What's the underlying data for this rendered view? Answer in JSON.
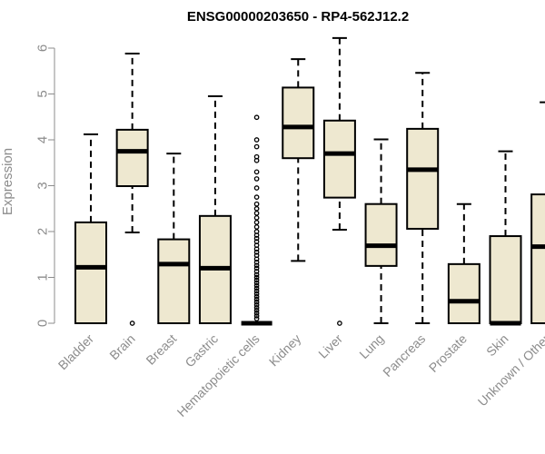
{
  "chart_data": {
    "type": "box",
    "title": "ENSG00000203650 - RP4-562J12.2",
    "xlabel": "",
    "ylabel": "Expression",
    "ylim": [
      0,
      6.2
    ],
    "yticks": [
      0,
      1,
      2,
      3,
      4,
      5,
      6
    ],
    "ytick_labels": [
      "0",
      "1",
      "2",
      "3",
      "4",
      "5",
      "6"
    ],
    "box_color": "#EEE8D0",
    "categories": [
      "Bladder",
      "Brain",
      "Breast",
      "Gastric",
      "Hematopoietic cells",
      "Kidney",
      "Liver",
      "Lung",
      "Pancreas",
      "Prostate",
      "Skin",
      "Unknown / Other"
    ],
    "boxes": [
      {
        "min": 0,
        "q1": 0,
        "median": 1.22,
        "q3": 2.2,
        "max": 4.12,
        "outliers": []
      },
      {
        "min": 1.98,
        "q1": 2.99,
        "median": 3.75,
        "q3": 4.22,
        "max": 5.88,
        "outliers": [
          0
        ]
      },
      {
        "min": 0,
        "q1": 0,
        "median": 1.29,
        "q3": 1.83,
        "max": 3.7,
        "outliers": []
      },
      {
        "min": 0,
        "q1": 0,
        "median": 1.2,
        "q3": 2.34,
        "max": 4.95,
        "outliers": []
      },
      {
        "min": 0,
        "q1": 0,
        "median": 0,
        "q3": 0,
        "max": 0,
        "outliers": [
          4.49,
          4.0,
          3.85,
          3.63,
          3.55,
          3.3,
          3.15,
          2.95,
          2.75,
          2.6,
          2.5,
          2.4,
          2.3,
          2.2,
          2.1,
          2.0,
          1.92,
          1.85,
          1.78,
          1.7,
          1.62,
          1.55,
          1.48,
          1.4,
          1.33,
          1.26,
          1.2,
          1.13,
          1.06,
          1.0,
          0.94,
          0.88,
          0.82,
          0.76,
          0.7,
          0.64,
          0.58,
          0.52,
          0.46,
          0.4,
          0.34,
          0.28,
          0.22,
          0.16,
          0.1
        ]
      },
      {
        "min": 1.36,
        "q1": 3.6,
        "median": 4.28,
        "q3": 5.14,
        "max": 5.76,
        "outliers": []
      },
      {
        "min": 2.04,
        "q1": 2.74,
        "median": 3.7,
        "q3": 4.42,
        "max": 6.22,
        "outliers": [
          0
        ]
      },
      {
        "min": 0,
        "q1": 1.25,
        "median": 1.69,
        "q3": 2.6,
        "max": 4.01,
        "outliers": []
      },
      {
        "min": 0,
        "q1": 2.06,
        "median": 3.35,
        "q3": 4.24,
        "max": 5.46,
        "outliers": []
      },
      {
        "min": 0,
        "q1": 0,
        "median": 0.48,
        "q3": 1.29,
        "max": 2.6,
        "outliers": []
      },
      {
        "min": 0,
        "q1": 0,
        "median": 0,
        "q3": 1.9,
        "max": 3.75,
        "outliers": []
      },
      {
        "min": 0,
        "q1": 0,
        "median": 1.67,
        "q3": 2.81,
        "max": 4.82,
        "outliers": []
      }
    ]
  }
}
